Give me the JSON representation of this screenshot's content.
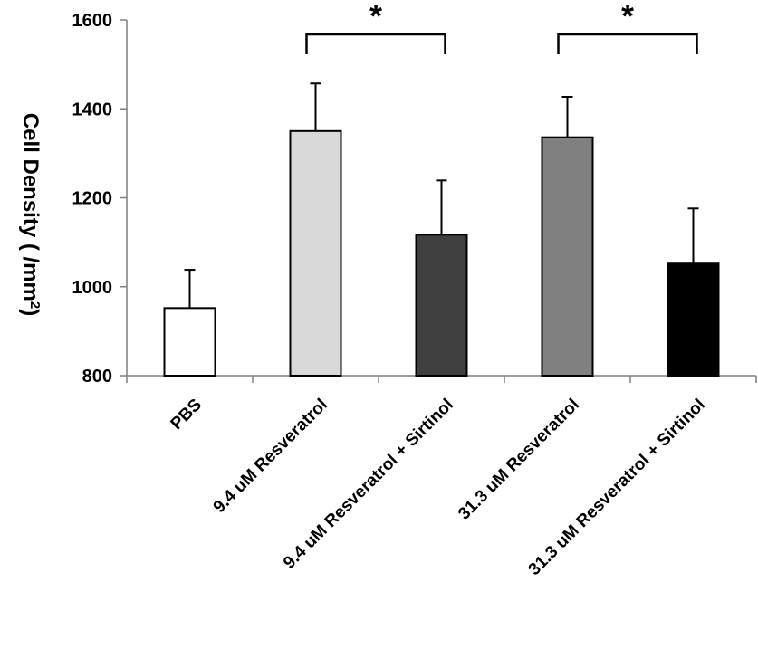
{
  "chart_data": {
    "type": "bar",
    "title": "",
    "xlabel": "",
    "ylabel": "Cell Density ( /mm",
    "ylabel_superscript": "2",
    "ylabel_close": ")",
    "ylim": [
      800,
      1600
    ],
    "yticks": [
      "800",
      "1000",
      "1200",
      "1400",
      "1600"
    ],
    "ytick_values": [
      800,
      1000,
      1200,
      1400,
      1600
    ],
    "grid": false,
    "legend": "none",
    "categories": [
      "PBS",
      "9.4 uM Resveratrol",
      "9.4 uM Resveratrol + Sirtinol",
      "31.3 uM Resveratrol",
      "31.3 uM Resveratrol + Sirtinol"
    ],
    "values": [
      952,
      1350,
      1117,
      1336,
      1052
    ],
    "errors": [
      86,
      107,
      122,
      91,
      124
    ],
    "colors": [
      "#ffffff",
      "#d9d9d9",
      "#404040",
      "#808080",
      "#000000"
    ],
    "significance": [
      {
        "from": 1,
        "to": 2,
        "label": "*"
      },
      {
        "from": 3,
        "to": 4,
        "label": "*"
      }
    ]
  }
}
